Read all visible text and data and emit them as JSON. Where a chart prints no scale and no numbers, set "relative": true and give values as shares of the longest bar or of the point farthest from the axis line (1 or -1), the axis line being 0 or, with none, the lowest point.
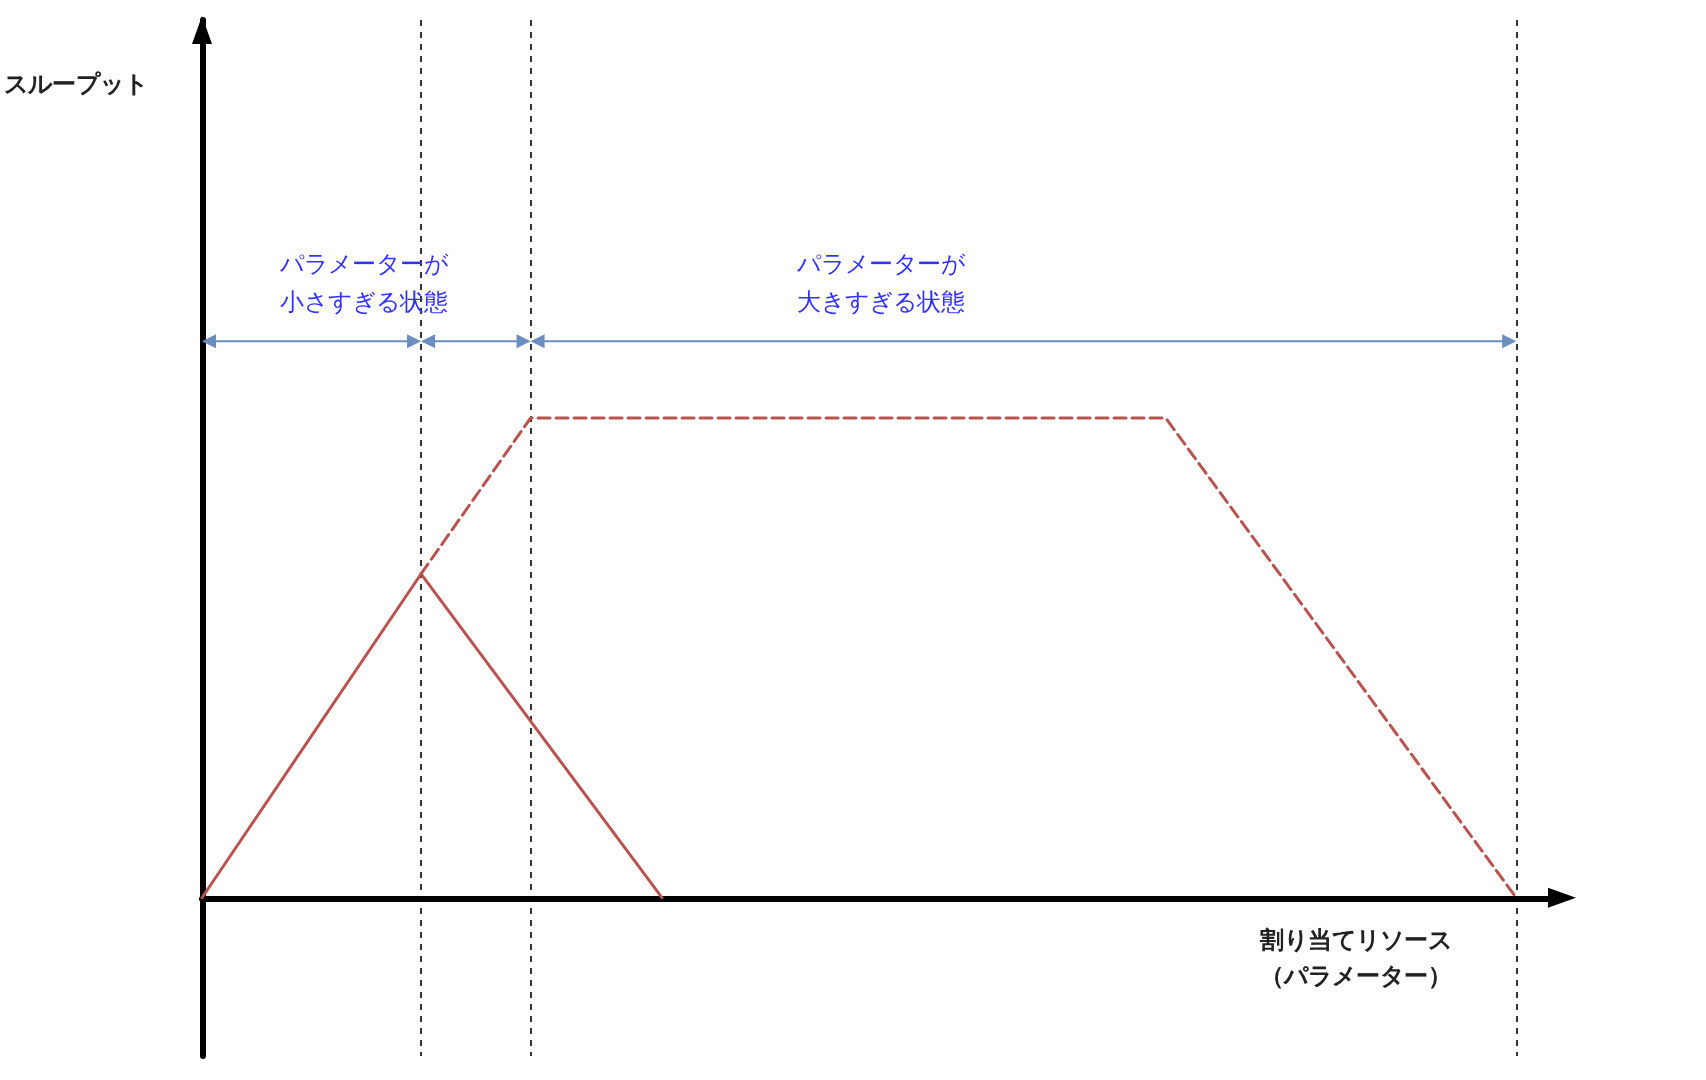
{
  "chart_data": {
    "type": "line",
    "relative": true,
    "xlabel": "割り当てリソース（パラメーター）",
    "marker": "none",
    "grid": "x",
    "categories": [
      null,
      null,
      null,
      null,
      null,
      null,
      null,
      null,
      null,
      null,
      null,
      null,
      null,
      null,
      null,
      null,
      null,
      null,
      null,
      null,
      null,
      null,
      null,
      null,
      null,
      null,
      null,
      null,
      null,
      null,
      null,
      null,
      null,
      null,
      null,
      null,
      null,
      null,
      null,
      null,
      null,
      null,
      null,
      null,
      null,
      null,
      null,
      null,
      null,
      null,
      null,
      null,
      null,
      null,
      null,
      null,
      null,
      null,
      null,
      null,
      null,
      null,
      null
    ],
    "series": [
      {
        "color": "#b85450",
        "line_style": "solid",
        "values": [
          0,
          null,
          null,
          null,
          null,
          null,
          null,
          null,
          null,
          null,
          0.675,
          null,
          null,
          null,
          null,
          null,
          null,
          null,
          null,
          null,
          null,
          0,
          null,
          null,
          null,
          null,
          null,
          null,
          null,
          null,
          null,
          null,
          null,
          null,
          null,
          null,
          null,
          null,
          null,
          null,
          null,
          null,
          null,
          null,
          null,
          null,
          null,
          null,
          null,
          null,
          null,
          null,
          null,
          null,
          null,
          null,
          null,
          null,
          null,
          null,
          null,
          null,
          null
        ]
      },
      {
        "color": "#b85450",
        "line_style": "dashed",
        "values": [
          null,
          null,
          null,
          null,
          null,
          null,
          null,
          null,
          null,
          null,
          0.675,
          null,
          null,
          null,
          null,
          1,
          null,
          null,
          null,
          null,
          null,
          null,
          null,
          null,
          null,
          null,
          null,
          null,
          null,
          null,
          null,
          null,
          null,
          null,
          null,
          null,
          null,
          null,
          null,
          null,
          null,
          null,
          null,
          null,
          1,
          null,
          null,
          null,
          null,
          null,
          null,
          null,
          null,
          null,
          null,
          null,
          null,
          null,
          null,
          null,
          0,
          null,
          null
        ]
      }
    ],
    "annotations": [
      "スループット",
      "パラメーターが小さすぎる状態",
      "パラメーターが大きすぎる状態"
    ]
  }
}
